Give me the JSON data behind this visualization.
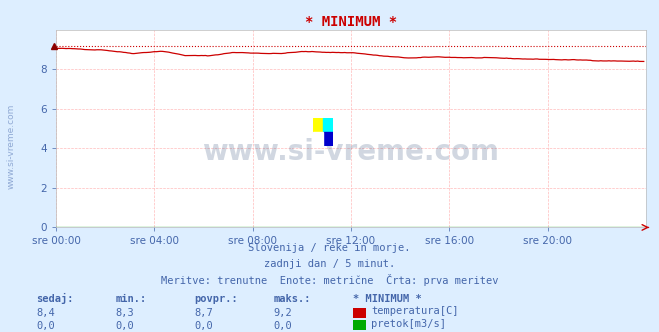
{
  "title": "* MINIMUM *",
  "bg_color": "#ddeeff",
  "plot_bg_color": "#ffffff",
  "grid_color": "#ffbbbb",
  "tick_label_color": "#4466aa",
  "title_color": "#cc0000",
  "text_color": "#4466aa",
  "line_color_temp": "#cc0000",
  "line_color_pretok": "#00aa00",
  "dotted_line_color": "#cc0000",
  "y_min": 0,
  "y_max": 10,
  "y_ticks": [
    0,
    2,
    4,
    6,
    8
  ],
  "x_tick_labels": [
    "sre 00:00",
    "sre 04:00",
    "sre 08:00",
    "sre 12:00",
    "sre 16:00",
    "sre 20:00"
  ],
  "x_tick_positions": [
    0,
    48,
    96,
    144,
    192,
    240
  ],
  "total_points": 288,
  "subtitle1": "Slovenija / reke in morje.",
  "subtitle2": "zadnji dan / 5 minut.",
  "subtitle3": "Meritve: trenutne  Enote: metrične  Črta: prva meritev",
  "table_headers": [
    "sedaj:",
    "min.:",
    "povpr.:",
    "maks.:",
    "* MINIMUM *"
  ],
  "table_row1": [
    "8,4",
    "8,3",
    "8,7",
    "9,2"
  ],
  "table_row2": [
    "0,0",
    "0,0",
    "0,0",
    "0,0"
  ],
  "label_temp": "temperatura[C]",
  "label_pretok": "pretok[m3/s]",
  "watermark": "www.si-vreme.com",
  "watermark_color": "#1a3a6a",
  "temp_max_dotted": 9.2
}
